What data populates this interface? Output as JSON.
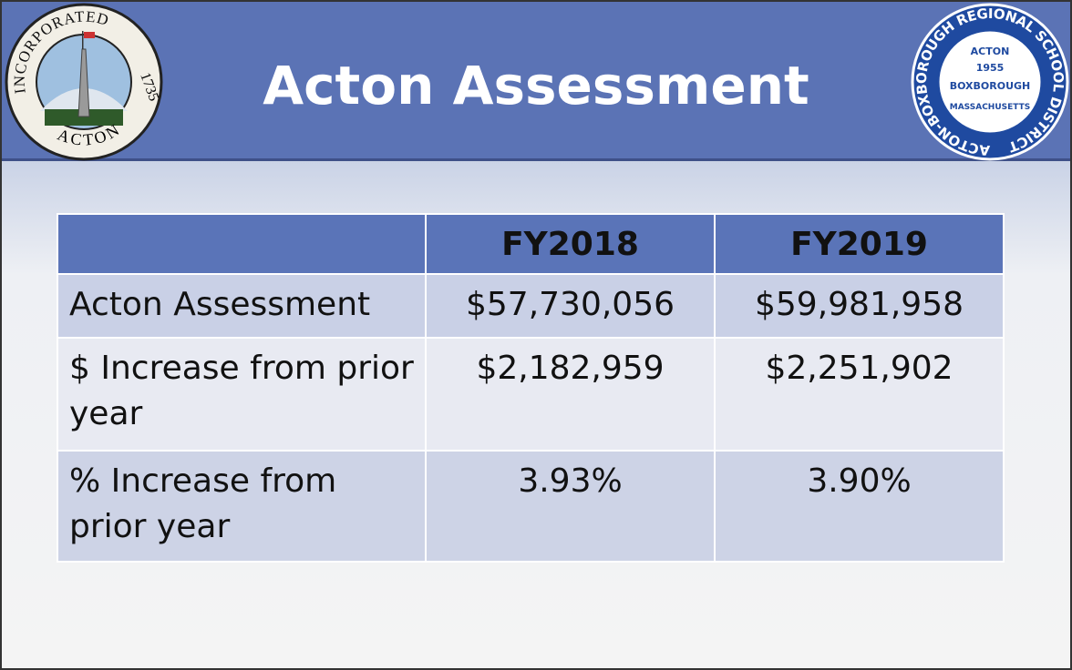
{
  "header": {
    "title": "Acton Assessment",
    "town_seal": {
      "top": "INCORPORATED",
      "side": "1735",
      "bottom": "ACTON"
    },
    "school_seal": {
      "ring": "ACTON-BOXBOROUGH REGIONAL SCHOOL DISTRICT",
      "lines": [
        "ACTON",
        "1955",
        "BOXBOROUGH",
        "MASSACHUSETTS"
      ]
    }
  },
  "table": {
    "columns": [
      "FY2018",
      "FY2019"
    ],
    "rows": [
      [
        "Acton Assessment",
        "$57,730,056",
        "$59,981,958"
      ],
      [
        "$ Increase from prior year",
        "$2,182,959",
        "$2,251,902"
      ],
      [
        "% Increase from prior year",
        "3.93%",
        "3.90%"
      ]
    ]
  }
}
